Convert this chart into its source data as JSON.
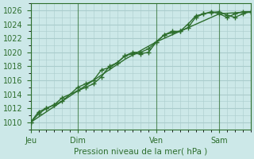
{
  "background_color": "#cce8e8",
  "grid_color": "#aacccc",
  "line_color": "#2d6e2d",
  "text_color": "#2d6e2d",
  "ylabel_text": "Pression niveau de la mer( hPa )",
  "ylim": [
    1009,
    1027
  ],
  "yticks": [
    1010,
    1012,
    1014,
    1016,
    1018,
    1020,
    1022,
    1024,
    1026
  ],
  "day_labels": [
    "Jeu",
    "Dim",
    "Ven",
    "Sam"
  ],
  "day_positions": [
    0,
    3,
    8,
    12
  ],
  "line1_x": [
    0,
    0.5,
    1,
    1.5,
    2,
    3,
    3.5,
    4,
    4.5,
    5,
    5.5,
    6,
    6.5,
    7,
    7.5,
    8,
    8.5,
    9,
    9.5,
    10,
    10.5,
    11,
    11.5,
    12,
    12.5,
    13,
    13.5,
    14
  ],
  "line1_y": [
    1010,
    1011.5,
    1012,
    1012.5,
    1013,
    1015,
    1015.5,
    1016,
    1017.5,
    1017.8,
    1018.5,
    1019.5,
    1019.8,
    1019.8,
    1020,
    1021.5,
    1022.5,
    1023,
    1023,
    1024,
    1025.2,
    1025.5,
    1025.7,
    1025.8,
    1025.3,
    1025.0,
    1025.5,
    1025.8
  ],
  "line2_x": [
    0,
    0.5,
    1,
    1.5,
    2,
    3,
    3.5,
    4,
    4.5,
    5,
    5.5,
    6,
    6.5,
    7,
    7.5,
    8,
    8.5,
    9,
    9.5,
    10,
    10.5,
    11,
    11.5,
    12,
    12.5,
    13,
    13.5,
    14
  ],
  "line2_y": [
    1010,
    1011.2,
    1012,
    1012.5,
    1013.5,
    1014.5,
    1015,
    1015.5,
    1016.5,
    1018,
    1018.5,
    1019.5,
    1020,
    1020,
    1020.5,
    1021.5,
    1022.5,
    1022.8,
    1023,
    1023.5,
    1025,
    1025.5,
    1025.8,
    1025.5,
    1025.0,
    1025.5,
    1025.8,
    1025.8
  ],
  "line3_x": [
    0,
    2,
    4,
    6,
    8,
    10,
    12,
    14
  ],
  "line3_y": [
    1010,
    1013,
    1016,
    1019,
    1021.5,
    1023.5,
    1025.5,
    1025.8
  ],
  "figsize": [
    3.2,
    2.0
  ],
  "dpi": 100
}
